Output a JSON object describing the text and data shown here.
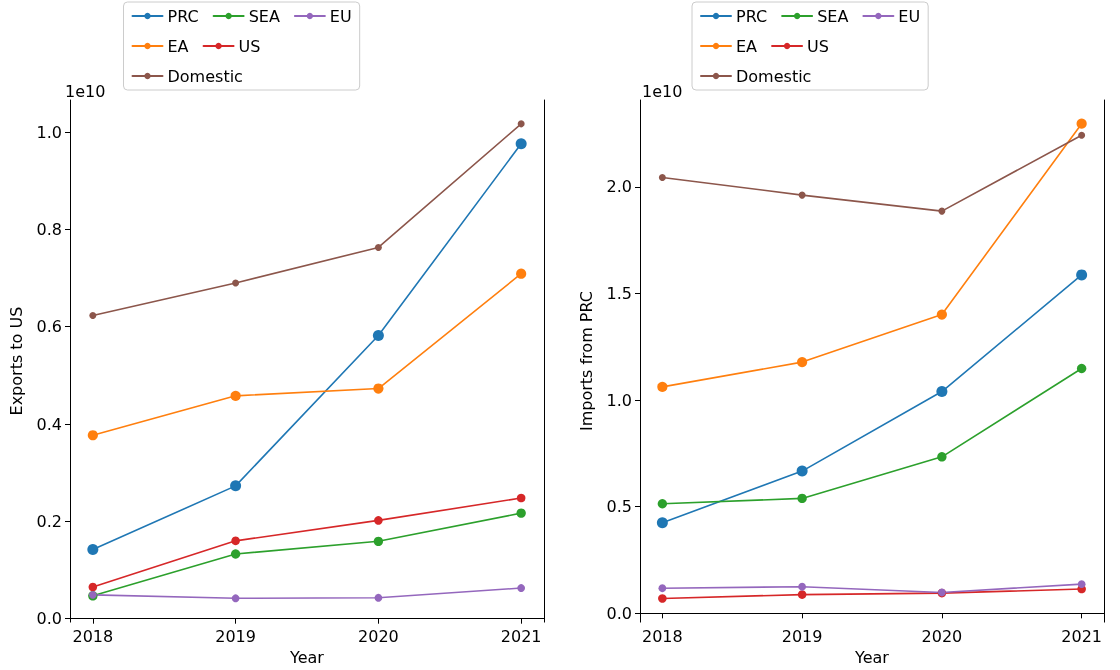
{
  "chart_data": [
    {
      "type": "line",
      "xlabel": "Year",
      "ylabel": "Exports to US",
      "annotations": [
        "1e10"
      ],
      "x": [
        2018,
        2019,
        2020,
        2021
      ],
      "xlim": [
        2017.84,
        2021.16
      ],
      "xticks": [
        2018,
        2019,
        2020,
        2021
      ],
      "ylim": [
        -0.007,
        1.066
      ],
      "yticks": [
        {
          "value": 0,
          "label": "0.0"
        },
        0.2,
        0.4,
        0.6,
        0.8,
        {
          "value": 1,
          "label": "1.0"
        }
      ],
      "grid": false,
      "legend": "top",
      "marker": "circle",
      "line_style": "solid",
      "series": [
        {
          "name": "PRC",
          "color": "#1f77b4",
          "values": [
            0.142,
            0.273,
            0.582,
            0.976
          ]
        },
        {
          "name": "EA",
          "color": "#ff7f0e",
          "values": [
            0.377,
            0.458,
            0.473,
            0.709
          ]
        },
        {
          "name": "SEA",
          "color": "#2ca02c",
          "values": [
            0.047,
            0.133,
            0.159,
            0.217
          ]
        },
        {
          "name": "US",
          "color": "#d62728",
          "values": [
            0.065,
            0.16,
            0.202,
            0.248
          ]
        },
        {
          "name": "EU",
          "color": "#9467bd",
          "values": [
            0.049,
            0.042,
            0.043,
            0.063
          ]
        },
        {
          "name": "Domestic",
          "color": "#8c564b",
          "values": [
            0.623,
            0.69,
            0.763,
            1.017
          ]
        }
      ]
    },
    {
      "type": "line",
      "xlabel": "Year",
      "ylabel": "Imports from PRC",
      "annotations": [
        "1e10"
      ],
      "x": [
        2018,
        2019,
        2020,
        2021
      ],
      "xlim": [
        2017.84,
        2021.16
      ],
      "xticks": [
        2018,
        2019,
        2020,
        2021
      ],
      "ylim": [
        -0.041,
        2.407
      ],
      "yticks": [
        {
          "value": 0,
          "label": "0.0"
        },
        0.5,
        {
          "value": 1,
          "label": "1.0"
        },
        1.5,
        {
          "value": 2,
          "label": "2.0"
        }
      ],
      "grid": false,
      "legend": "top",
      "marker": "circle",
      "line_style": "solid",
      "series": [
        {
          "name": "PRC",
          "color": "#1f77b4",
          "values": [
            0.425,
            0.667,
            1.04,
            1.587
          ]
        },
        {
          "name": "EA",
          "color": "#ff7f0e",
          "values": [
            1.062,
            1.178,
            1.401,
            2.296
          ]
        },
        {
          "name": "SEA",
          "color": "#2ca02c",
          "values": [
            0.514,
            0.539,
            0.734,
            1.148
          ]
        },
        {
          "name": "US",
          "color": "#d62728",
          "values": [
            0.07,
            0.088,
            0.095,
            0.114
          ]
        },
        {
          "name": "EU",
          "color": "#9467bd",
          "values": [
            0.118,
            0.125,
            0.098,
            0.137
          ]
        },
        {
          "name": "Domestic",
          "color": "#8c564b",
          "values": [
            2.044,
            1.961,
            1.886,
            2.242
          ]
        }
      ]
    }
  ]
}
